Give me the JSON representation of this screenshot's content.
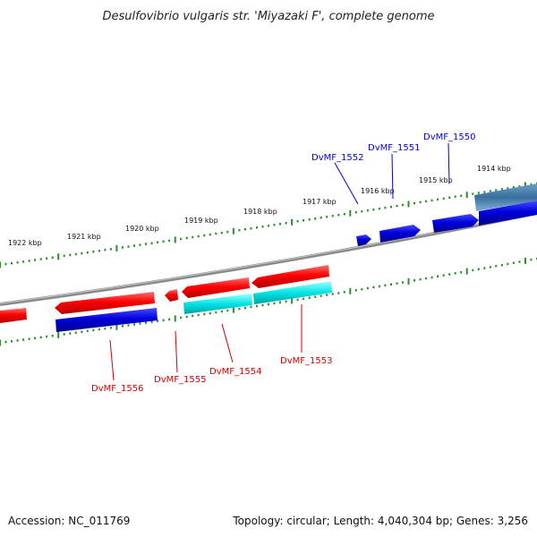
{
  "title": "Desulfovibrio vulgaris str. 'Miyazaki F', complete genome",
  "footer": {
    "accession": "Accession: NC_011769",
    "summary": "Topology: circular; Length: 4,040,304 bp; Genes: 3,256"
  },
  "colors": {
    "forward_cds": "#ff0000",
    "reverse_cds": "#0000dd",
    "forward_label": "#0000cc",
    "reverse_label": "#cc0000",
    "rna_teal": "#00e5e5",
    "backbone": "#8a8a8a",
    "ticks": "#2e8b2e"
  },
  "ticks": [
    "1914 kbp",
    "1915 kbp",
    "1916 kbp",
    "1917 kbp",
    "1918 kbp",
    "1919 kbp",
    "1920 kbp",
    "1921 kbp",
    "1922 kbp"
  ],
  "forward_labels": [
    "DvMF_1550",
    "DvMF_1551",
    "DvMF_1552"
  ],
  "reverse_labels": [
    "DvMF_1553",
    "DvMF_1554",
    "DvMF_1555",
    "DvMF_1556"
  ]
}
